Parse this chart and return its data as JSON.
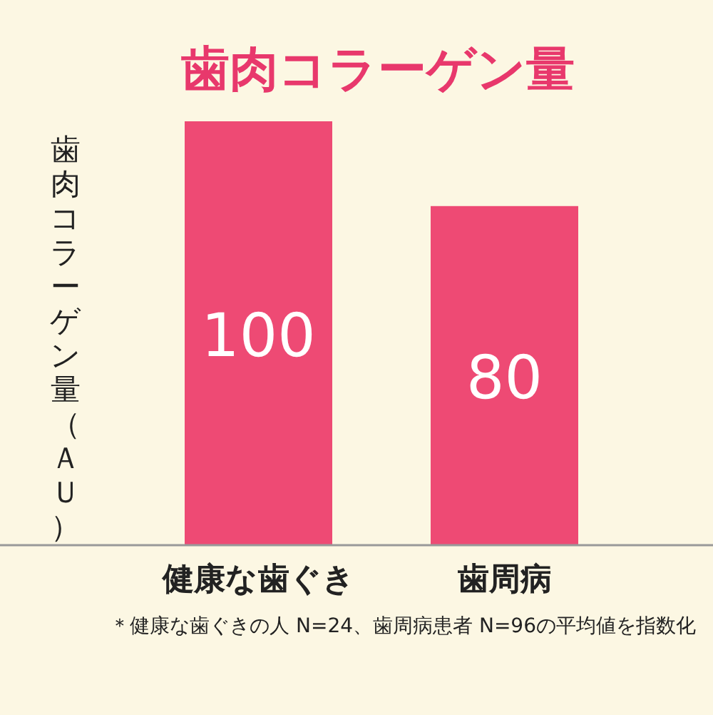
{
  "chart_data": {
    "type": "bar",
    "title": "歯肉コラーゲン量",
    "ylabel": "歯肉コラーゲン量（ＡＵ）",
    "categories": [
      "健康な歯ぐき",
      "歯周病"
    ],
    "values": [
      100,
      80
    ],
    "color": "#ee4a74",
    "data_labels": true,
    "annotations": [
      "＊健康な歯ぐきの人 N=24、歯周病患者 N=96の平均値を指数化"
    ]
  }
}
